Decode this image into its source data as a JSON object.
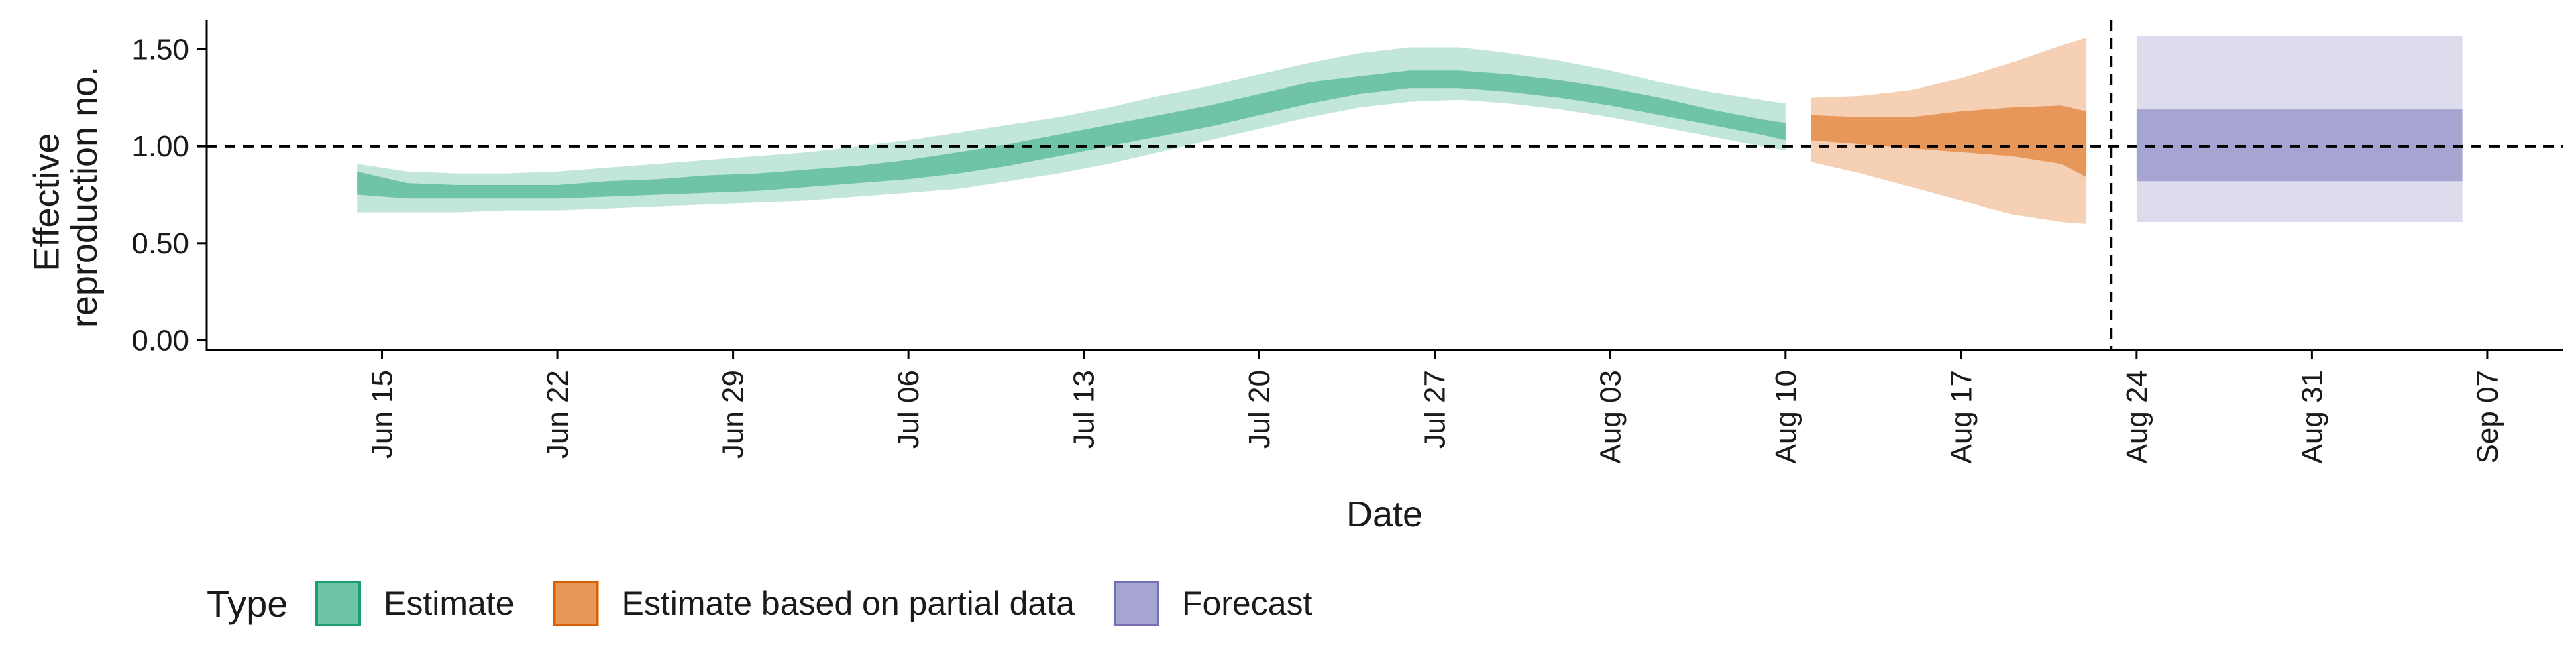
{
  "chart_data": {
    "type": "area",
    "title": "",
    "xlabel": "Date",
    "ylabel_lines": [
      "Effective",
      "reproduction no."
    ],
    "ylim": [
      -0.05,
      1.65
    ],
    "yticks": [
      0.0,
      0.5,
      1.0,
      1.5
    ],
    "ytick_labels": [
      "0.00",
      "0.50",
      "1.00",
      "1.50"
    ],
    "x_date_range": [
      "2020-06-08",
      "2020-09-10"
    ],
    "xticks": [
      "2020-06-15",
      "2020-06-22",
      "2020-06-29",
      "2020-07-06",
      "2020-07-13",
      "2020-07-20",
      "2020-07-27",
      "2020-08-03",
      "2020-08-10",
      "2020-08-17",
      "2020-08-24",
      "2020-08-31",
      "2020-09-07"
    ],
    "xtick_labels": [
      "Jun 15",
      "Jun 22",
      "Jun 29",
      "Jul 06",
      "Jul 13",
      "Jul 20",
      "Jul 27",
      "Aug 03",
      "Aug 10",
      "Aug 17",
      "Aug 24",
      "Aug 31",
      "Sep 07"
    ],
    "reference_hline": 1.0,
    "reference_vline": "2020-08-23",
    "grid": false,
    "legend_position": "bottom",
    "legend": {
      "title": "Type",
      "entries": [
        {
          "label": "Estimate",
          "fill": "#70c4a6",
          "stroke": "#1b9e77"
        },
        {
          "label": "Estimate based on partial data",
          "fill": "#e8975a",
          "stroke": "#d95f02"
        },
        {
          "label": "Forecast",
          "fill": "#a6a4d1",
          "stroke": "#7570b3"
        }
      ]
    },
    "series": [
      {
        "type": "Estimate",
        "inner_color": "#70c4a6",
        "outer_color": "#c2e6d9",
        "x": [
          "2020-06-14",
          "2020-06-16",
          "2020-06-18",
          "2020-06-20",
          "2020-06-22",
          "2020-06-24",
          "2020-06-26",
          "2020-06-28",
          "2020-06-30",
          "2020-07-02",
          "2020-07-04",
          "2020-07-06",
          "2020-07-08",
          "2020-07-10",
          "2020-07-12",
          "2020-07-14",
          "2020-07-16",
          "2020-07-18",
          "2020-07-20",
          "2020-07-22",
          "2020-07-24",
          "2020-07-26",
          "2020-07-28",
          "2020-07-30",
          "2020-08-01",
          "2020-08-03",
          "2020-08-05",
          "2020-08-07",
          "2020-08-09",
          "2020-08-10"
        ],
        "lower90": [
          0.66,
          0.66,
          0.66,
          0.67,
          0.67,
          0.68,
          0.69,
          0.7,
          0.71,
          0.72,
          0.74,
          0.76,
          0.78,
          0.82,
          0.86,
          0.91,
          0.97,
          1.03,
          1.09,
          1.15,
          1.2,
          1.23,
          1.24,
          1.22,
          1.19,
          1.15,
          1.1,
          1.05,
          1.0,
          0.98
        ],
        "lower50": [
          0.75,
          0.73,
          0.73,
          0.73,
          0.73,
          0.74,
          0.75,
          0.76,
          0.77,
          0.79,
          0.81,
          0.83,
          0.86,
          0.9,
          0.95,
          1.0,
          1.05,
          1.1,
          1.16,
          1.22,
          1.27,
          1.3,
          1.3,
          1.28,
          1.25,
          1.21,
          1.16,
          1.11,
          1.06,
          1.03
        ],
        "upper50": [
          0.87,
          0.81,
          0.8,
          0.8,
          0.8,
          0.82,
          0.83,
          0.85,
          0.86,
          0.88,
          0.9,
          0.93,
          0.97,
          1.01,
          1.06,
          1.11,
          1.16,
          1.21,
          1.27,
          1.33,
          1.36,
          1.39,
          1.39,
          1.37,
          1.34,
          1.3,
          1.25,
          1.19,
          1.14,
          1.12
        ],
        "upper90": [
          0.91,
          0.87,
          0.86,
          0.86,
          0.87,
          0.89,
          0.91,
          0.93,
          0.95,
          0.97,
          1.0,
          1.03,
          1.07,
          1.11,
          1.15,
          1.2,
          1.26,
          1.31,
          1.37,
          1.43,
          1.48,
          1.51,
          1.51,
          1.48,
          1.44,
          1.39,
          1.33,
          1.28,
          1.24,
          1.22
        ]
      },
      {
        "type": "Estimate based on partial data",
        "inner_color": "#e8975a",
        "outer_color": "#f5d0b4",
        "x": [
          "2020-08-11",
          "2020-08-13",
          "2020-08-15",
          "2020-08-17",
          "2020-08-19",
          "2020-08-21",
          "2020-08-22"
        ],
        "lower90": [
          0.92,
          0.86,
          0.79,
          0.72,
          0.65,
          0.61,
          0.6
        ],
        "lower50": [
          1.03,
          1.01,
          0.99,
          0.97,
          0.95,
          0.91,
          0.84
        ],
        "upper50": [
          1.16,
          1.15,
          1.15,
          1.18,
          1.2,
          1.21,
          1.18
        ],
        "upper90": [
          1.25,
          1.26,
          1.29,
          1.35,
          1.43,
          1.52,
          1.56
        ]
      },
      {
        "type": "Forecast",
        "inner_color": "#a6a4d1",
        "outer_color": "#dcdcec",
        "x": [
          "2020-08-24",
          "2020-09-06"
        ],
        "lower90": [
          0.61,
          0.61
        ],
        "lower50": [
          0.82,
          0.82
        ],
        "upper50": [
          1.19,
          1.19
        ],
        "upper90": [
          1.57,
          1.57
        ]
      }
    ]
  }
}
